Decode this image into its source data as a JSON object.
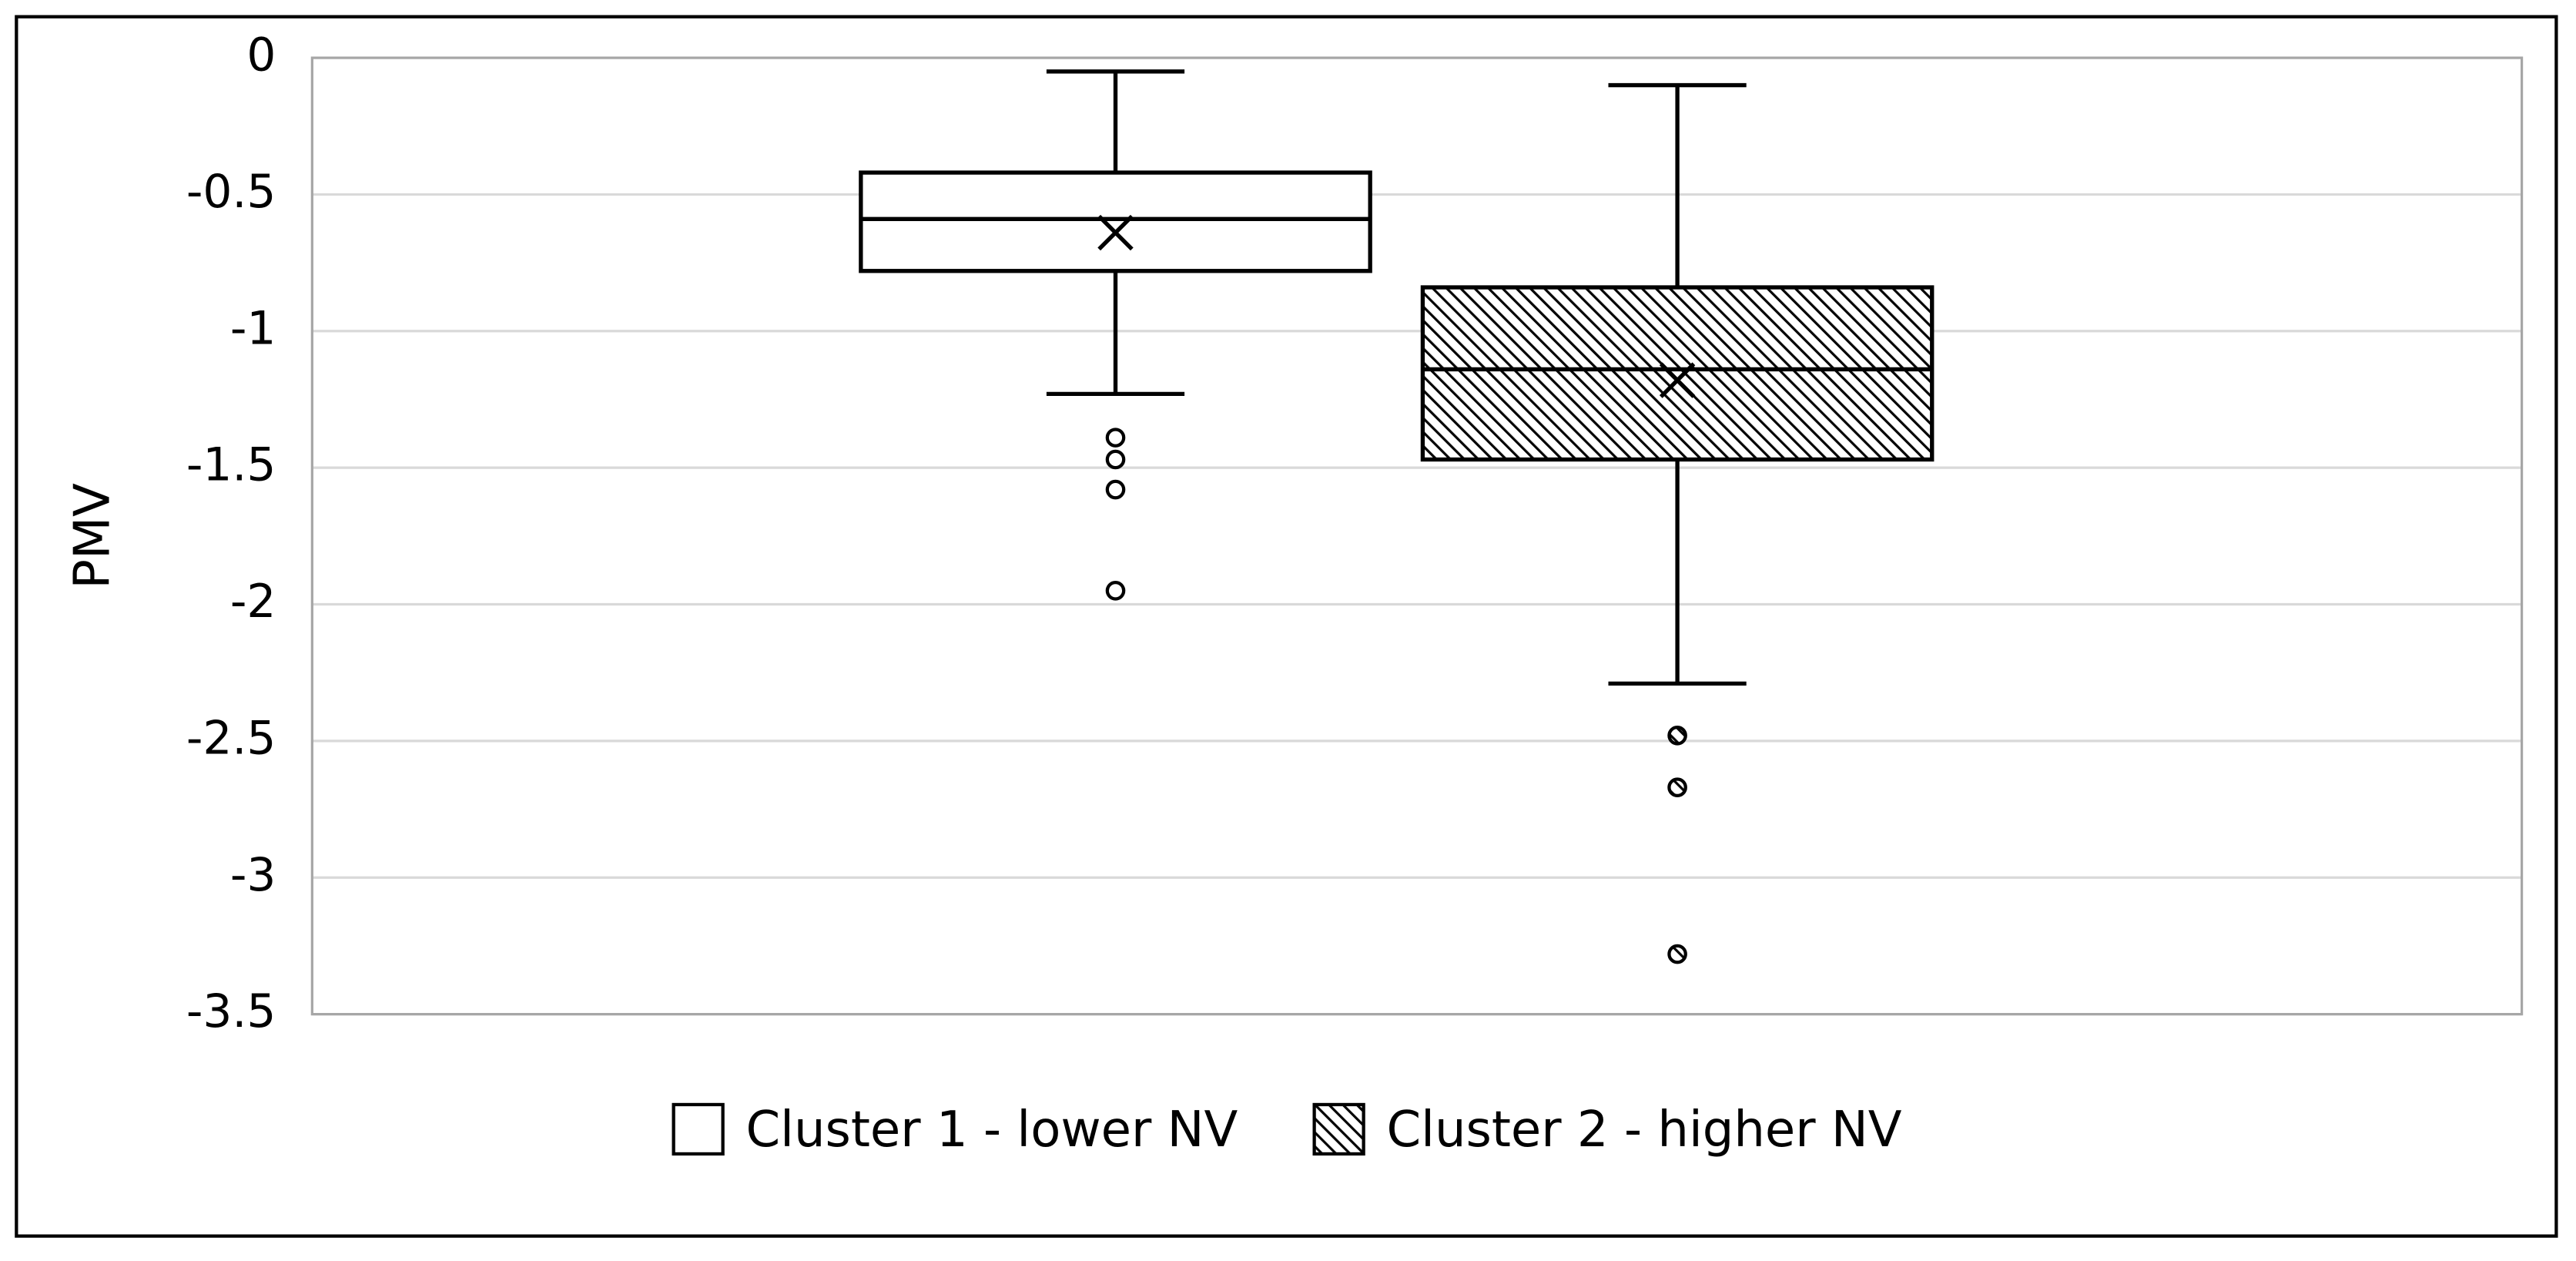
{
  "chart_data": {
    "type": "box",
    "ylabel": "PMV",
    "ylim": [
      -3.5,
      0
    ],
    "yticks": [
      0,
      -0.5,
      -1,
      -1.5,
      -2,
      -2.5,
      -3,
      -3.5
    ],
    "grid": true,
    "legend": "bottom",
    "series": [
      {
        "name": "Cluster 1 - lower NV",
        "color": "#000000",
        "pattern": "none",
        "min": -1.23,
        "q1": -0.78,
        "median": -0.59,
        "q3": -0.42,
        "max": -0.05,
        "mean": -0.64,
        "outliers": [
          -1.39,
          -1.47,
          -1.58,
          -1.95
        ]
      },
      {
        "name": "Cluster 2 - higher NV",
        "color": "#000000",
        "pattern": "hatch",
        "min": -2.29,
        "q1": -1.47,
        "median": -1.14,
        "q3": -0.84,
        "max": -0.1,
        "mean": -1.18,
        "outliers": [
          -2.48,
          -2.67,
          -3.28
        ]
      }
    ]
  }
}
